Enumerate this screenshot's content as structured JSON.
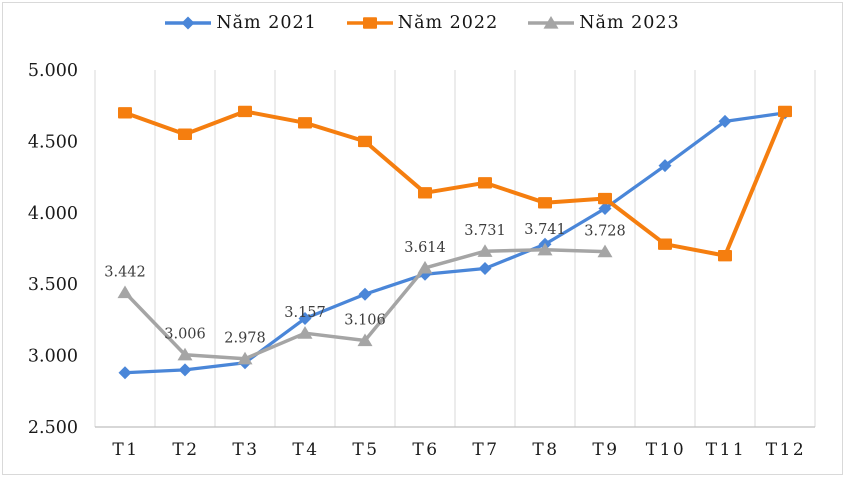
{
  "chart_data": {
    "type": "line",
    "title": "",
    "xlabel": "",
    "ylabel": "",
    "categories": [
      "T1",
      "T2",
      "T3",
      "T4",
      "T5",
      "T6",
      "T7",
      "T8",
      "T9",
      "T10",
      "T11",
      "T12"
    ],
    "series": [
      {
        "name": "Năm 2021",
        "color": "#4A86D8",
        "marker": "diamond",
        "values": [
          2880,
          2900,
          2950,
          3260,
          3430,
          3570,
          3610,
          3780,
          4030,
          4330,
          4640,
          4700
        ]
      },
      {
        "name": "Năm 2022",
        "color": "#F57E0F",
        "marker": "square",
        "values": [
          4700,
          4550,
          4710,
          4630,
          4500,
          4140,
          4210,
          4070,
          4100,
          3780,
          3700,
          4710
        ]
      },
      {
        "name": "Năm 2023",
        "color": "#A5A5A5",
        "marker": "triangle",
        "values": [
          3442,
          3006,
          2978,
          3157,
          3106,
          3614,
          3731,
          3741,
          3728,
          null,
          null,
          null
        ],
        "data_labels": [
          "3.442",
          "3.006",
          "2.978",
          "3.157",
          "3.106",
          "3.614",
          "3.731",
          "3.741",
          "3.728",
          null,
          null,
          null
        ]
      }
    ],
    "ylim": [
      2500,
      5000
    ],
    "y_ticks": [
      {
        "value": 2500,
        "label": "2.500"
      },
      {
        "value": 3000,
        "label": "3.000"
      },
      {
        "value": 3500,
        "label": "3.500"
      },
      {
        "value": 4000,
        "label": "4.000"
      },
      {
        "value": 4500,
        "label": "4.500"
      },
      {
        "value": 5000,
        "label": "5.000"
      }
    ],
    "grid": "vertical-only",
    "legend_position": "top"
  },
  "colors": {
    "gridline": "#D9D9D9",
    "axis_line": "#BFBFBF",
    "frame_border": "#D9D9D9",
    "tick_text": "#1a1a1a",
    "data_label_text": "#3d3d3d",
    "background": "#FFFFFF"
  }
}
